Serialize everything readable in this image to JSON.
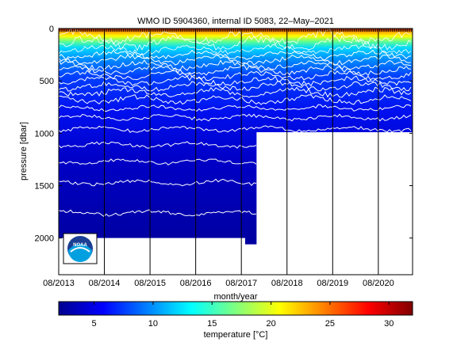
{
  "chart_data": [
    {
      "type": "heatmap",
      "title": "WMO ID 5904360, internal ID 5083, 22–May–2021",
      "xlabel": "month/year",
      "ylabel": "pressure [dbar]",
      "x_tick_labels": [
        "08/2013",
        "08/2014",
        "08/2015",
        "08/2016",
        "08/2017",
        "08/2018",
        "08/2019",
        "08/2020"
      ],
      "x_range": [
        "2013-08",
        "2021-05"
      ],
      "y_ticks": [
        0,
        500,
        1000,
        1500,
        2000
      ],
      "y_range": [
        0,
        2350
      ],
      "y_reversed": true,
      "profile_max_depth_dbar": [
        {
          "from": "2013-08",
          "to": "2017-09",
          "depth": 2000
        },
        {
          "from": "2017-09",
          "to": "2017-12",
          "depth": 2060
        },
        {
          "from": "2017-12",
          "to": "2021-05",
          "depth": 990
        }
      ],
      "contour_levels_degC": [
        2.5,
        3,
        3.5,
        4,
        5,
        6,
        7,
        8,
        9,
        10,
        12,
        14,
        16,
        18,
        20,
        22,
        24,
        26,
        28
      ],
      "contour_depths_dbar": [
        1760,
        1470,
        1270,
        1110,
        960,
        850,
        760,
        680,
        610,
        550,
        500,
        450,
        400,
        350,
        300,
        250,
        200,
        140,
        80
      ]
    },
    {
      "type": "colorbar",
      "label": "temperature [°C]",
      "ticks": [
        5,
        10,
        15,
        20,
        25,
        30
      ],
      "range": [
        2,
        32
      ],
      "colormap": "jet"
    }
  ],
  "logo": {
    "icon": "noaa-logo-icon",
    "text": "NOAA"
  }
}
